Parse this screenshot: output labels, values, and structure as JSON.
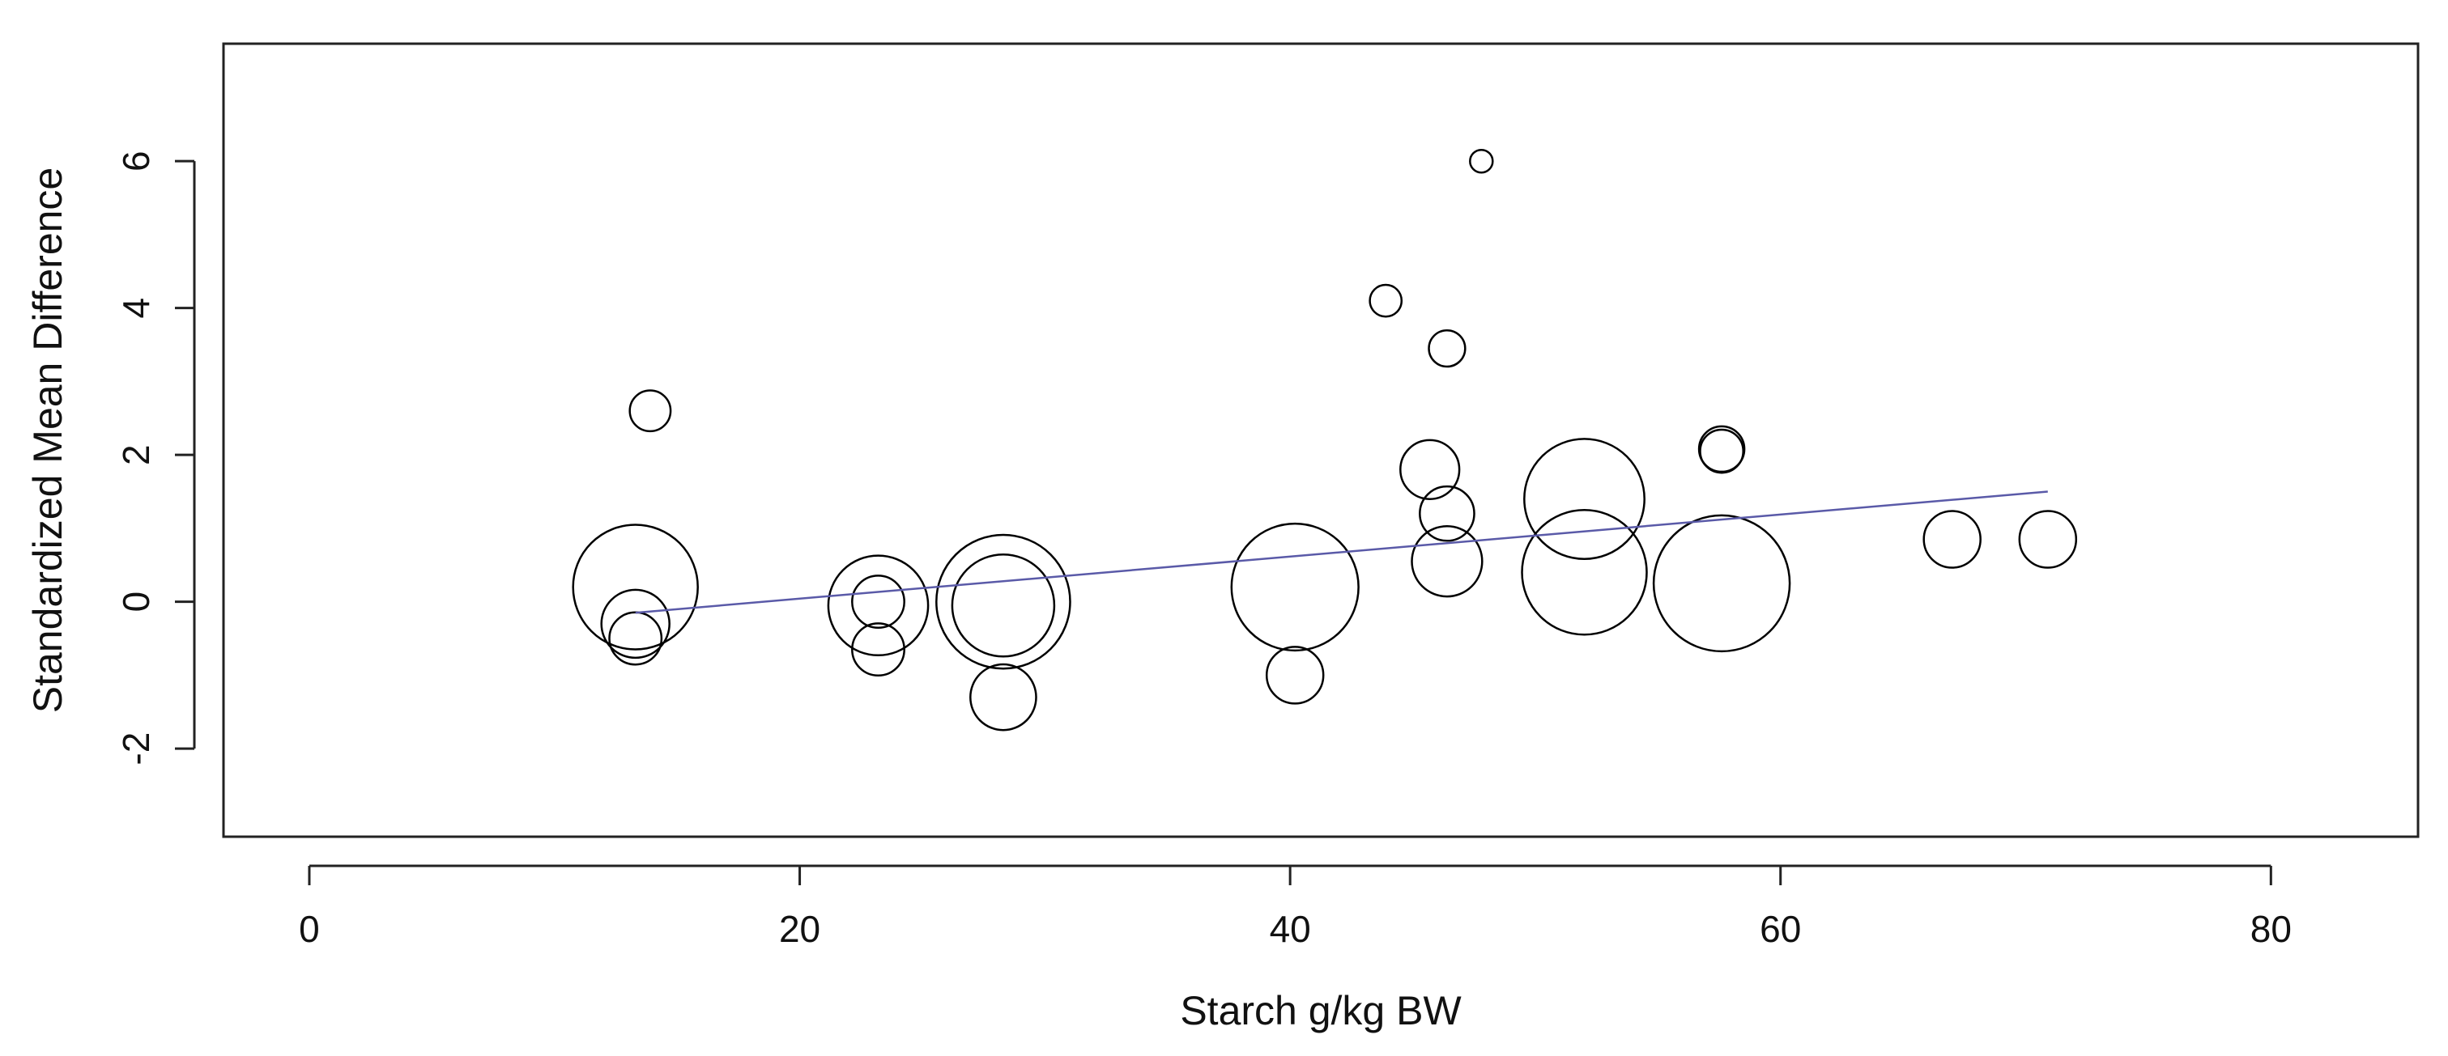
{
  "chart_data": {
    "type": "scatter",
    "title": "",
    "xlabel": "Starch g/kg BW",
    "ylabel": "Standardized Mean Difference",
    "xlim": [
      -3.5,
      86
    ],
    "ylim": [
      -3.2,
      7.6
    ],
    "xticks": [
      0,
      20,
      40,
      60,
      80
    ],
    "yticks": [
      -2,
      0,
      2,
      4,
      6
    ],
    "points": [
      {
        "x": 13.3,
        "y": 0.2,
        "r": 5.5
      },
      {
        "x": 13.3,
        "y": -0.3,
        "r": 3.0
      },
      {
        "x": 13.3,
        "y": -0.5,
        "r": 2.3
      },
      {
        "x": 13.9,
        "y": 2.6,
        "r": 1.8
      },
      {
        "x": 23.2,
        "y": -0.05,
        "r": 4.4
      },
      {
        "x": 23.2,
        "y": 0.0,
        "r": 2.3
      },
      {
        "x": 23.2,
        "y": -0.65,
        "r": 2.3
      },
      {
        "x": 28.3,
        "y": 0.0,
        "r": 5.9
      },
      {
        "x": 28.3,
        "y": -0.05,
        "r": 4.5
      },
      {
        "x": 28.3,
        "y": -1.3,
        "r": 2.9
      },
      {
        "x": 40.2,
        "y": 0.2,
        "r": 5.6
      },
      {
        "x": 40.2,
        "y": -1.0,
        "r": 2.5
      },
      {
        "x": 43.9,
        "y": 4.1,
        "r": 1.4
      },
      {
        "x": 45.7,
        "y": 1.8,
        "r": 2.6
      },
      {
        "x": 46.4,
        "y": 3.45,
        "r": 1.6
      },
      {
        "x": 46.4,
        "y": 1.2,
        "r": 2.4
      },
      {
        "x": 46.4,
        "y": 0.55,
        "r": 3.1
      },
      {
        "x": 47.8,
        "y": 6.0,
        "r": 1.0
      },
      {
        "x": 52.0,
        "y": 1.4,
        "r": 5.3
      },
      {
        "x": 52.0,
        "y": 0.4,
        "r": 5.5
      },
      {
        "x": 57.6,
        "y": 2.05,
        "r": 1.9
      },
      {
        "x": 57.6,
        "y": 2.08,
        "r": 2.0
      },
      {
        "x": 57.6,
        "y": 0.25,
        "r": 6.0
      },
      {
        "x": 67.0,
        "y": 0.85,
        "r": 2.5
      },
      {
        "x": 70.9,
        "y": 0.85,
        "r": 2.5
      }
    ],
    "regression_line": {
      "x": [
        13.3,
        70.9
      ],
      "y": [
        -0.15,
        1.5
      ],
      "color": "#5a5aa8"
    },
    "marker_color": "#000000",
    "grid": false,
    "legend": "none"
  }
}
